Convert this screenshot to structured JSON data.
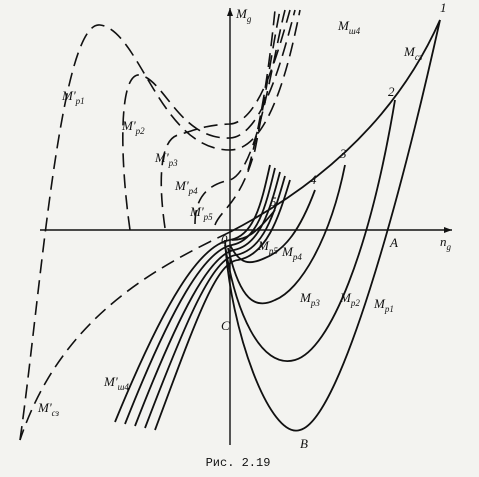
{
  "axes": {
    "y": {
      "text": "M",
      "sub": "g"
    },
    "x": {
      "text": "n",
      "sub": "g"
    }
  },
  "labels": [
    {
      "text": "1",
      "sub": ""
    },
    {
      "text": "2",
      "sub": ""
    },
    {
      "text": "3",
      "sub": ""
    },
    {
      "text": "4",
      "sub": ""
    },
    {
      "text": "5",
      "sub": ""
    },
    {
      "text": "A",
      "sub": ""
    },
    {
      "text": "B",
      "sub": ""
    },
    {
      "text": "C",
      "sub": ""
    },
    {
      "text": "0",
      "sub": ""
    },
    {
      "text": "M",
      "sub": "сз"
    },
    {
      "text": "M'",
      "sub": "сз"
    },
    {
      "text": "M",
      "sub": "ш4"
    },
    {
      "text": "M'",
      "sub": "ш4"
    },
    {
      "text": "M'",
      "sub": "p1"
    },
    {
      "text": "M'",
      "sub": "p2"
    },
    {
      "text": "M'",
      "sub": "p3"
    },
    {
      "text": "M'",
      "sub": "p4"
    },
    {
      "text": "M'",
      "sub": "p5"
    },
    {
      "text": "M",
      "sub": "p5"
    },
    {
      "text": "M",
      "sub": "p4"
    },
    {
      "text": "M",
      "sub": "p3"
    },
    {
      "text": "M",
      "sub": "p2"
    },
    {
      "text": "M",
      "sub": "p1"
    }
  ],
  "caption": "Рис. 2.19"
}
